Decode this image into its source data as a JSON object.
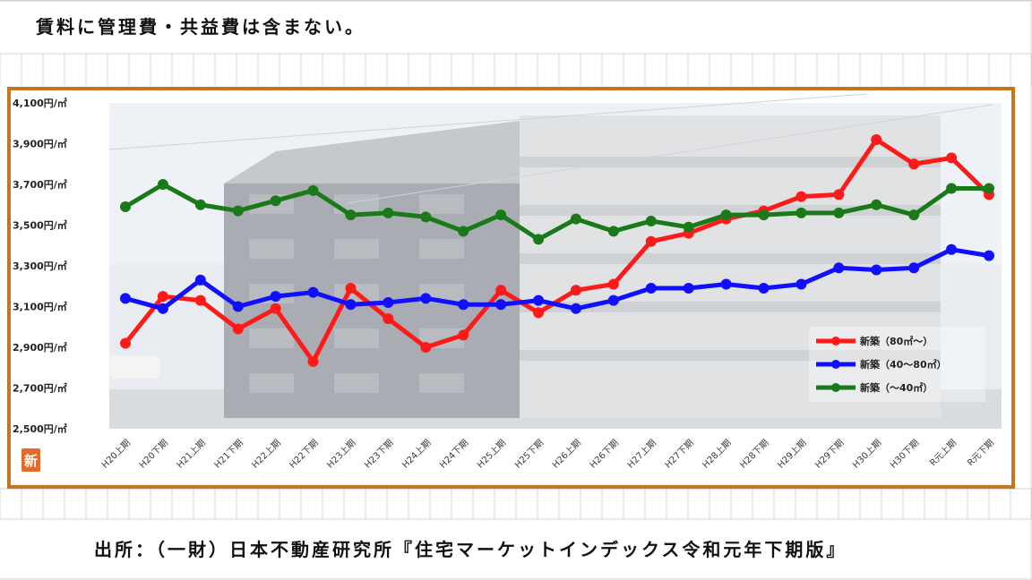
{
  "note": "賃料に管理費・共益費は含まない。",
  "source": "出所：（一財）日本不動産研究所『住宅マーケットインデックス令和元年下期版』",
  "logo_text": "新",
  "colors": {
    "frame": "#c8741d",
    "red": "#ff1a1a",
    "blue": "#1010ff",
    "green": "#1a7a1a",
    "logo": "#e26a2c"
  },
  "chart_data": {
    "type": "line",
    "title": "",
    "xlabel": "",
    "ylabel": "",
    "ylim": [
      2500,
      4100
    ],
    "yticks": [
      4100,
      3900,
      3700,
      3500,
      3300,
      3100,
      2900,
      2700,
      2500
    ],
    "ytick_labels": [
      "4,100円/㎡",
      "3,900円/㎡",
      "3,700円/㎡",
      "3,500円/㎡",
      "3,300円/㎡",
      "3,100円/㎡",
      "2,900円/㎡",
      "2,700円/㎡",
      "2,500円/㎡"
    ],
    "legend_position": "lower-right",
    "categories": [
      "H20上期",
      "H20下期",
      "H21上期",
      "H21下期",
      "H22上期",
      "H22下期",
      "H23上期",
      "H23下期",
      "H24上期",
      "H24下期",
      "H25上期",
      "H25下期",
      "H26上期",
      "H26下期",
      "H27上期",
      "H27下期",
      "H28上期",
      "H28下期",
      "H29上期",
      "H29下期",
      "H30上期",
      "H30下期",
      "R元上期",
      "R元下期"
    ],
    "series": [
      {
        "name": "新築（80㎡～）",
        "color": "#ff1a1a",
        "values": [
          2920,
          3150,
          3130,
          2990,
          3090,
          2830,
          3190,
          3040,
          2900,
          2960,
          3180,
          3070,
          3180,
          3210,
          3420,
          3460,
          3530,
          3570,
          3640,
          3650,
          3920,
          3800,
          3830,
          3650
        ]
      },
      {
        "name": "新築（40～80㎡）",
        "color": "#1010ff",
        "values": [
          3140,
          3090,
          3230,
          3100,
          3150,
          3170,
          3110,
          3120,
          3140,
          3110,
          3110,
          3130,
          3090,
          3130,
          3190,
          3190,
          3210,
          3190,
          3210,
          3290,
          3280,
          3290,
          3380,
          3350
        ]
      },
      {
        "name": "新築（～40㎡）",
        "color": "#1a7a1a",
        "values": [
          3590,
          3700,
          3600,
          3570,
          3620,
          3670,
          3550,
          3560,
          3540,
          3470,
          3550,
          3430,
          3530,
          3470,
          3520,
          3490,
          3550,
          3550,
          3560,
          3560,
          3600,
          3550,
          3680,
          3680
        ]
      }
    ]
  }
}
